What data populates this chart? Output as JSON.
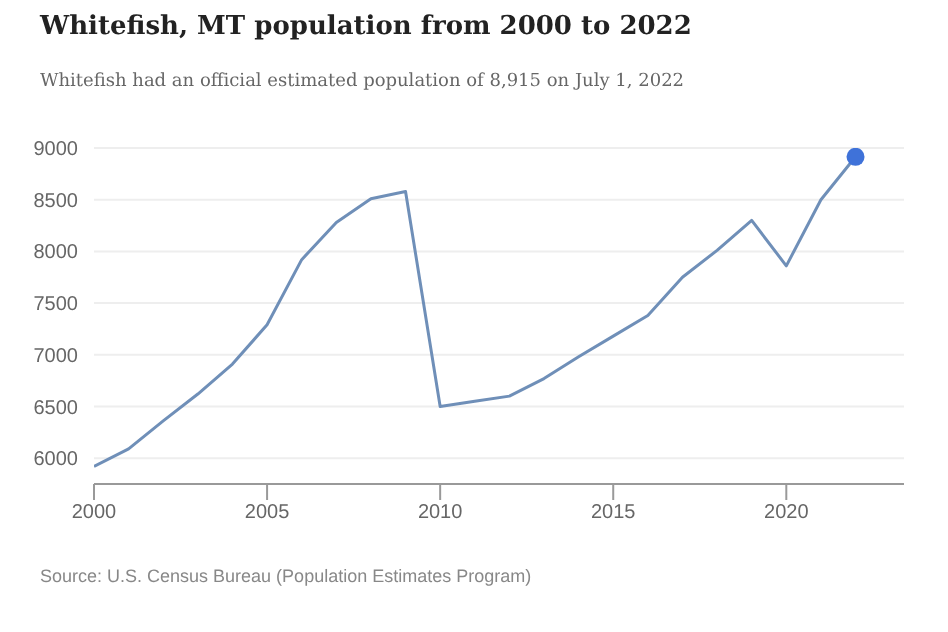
{
  "chart_data": {
    "type": "line",
    "title": "Whitefish, MT population from 2000 to 2022",
    "subtitle": "Whitefish had an official estimated population of 8,915 on July 1, 2022",
    "annotations": [
      "Source: U.S. Census Bureau (Population Estimates Program)"
    ],
    "x": [
      2000,
      2001,
      2002,
      2003,
      2004,
      2005,
      2006,
      2007,
      2008,
      2009,
      2010,
      2011,
      2012,
      2013,
      2014,
      2015,
      2016,
      2017,
      2018,
      2019,
      2020,
      2021,
      2022
    ],
    "series": [
      {
        "color": "#6f8fb8",
        "values": [
          5920,
          6090,
          6360,
          6620,
          6910,
          7290,
          7920,
          8280,
          8510,
          8580,
          6500,
          6550,
          6600,
          6770,
          6980,
          7180,
          7380,
          7750,
          8010,
          8300,
          7860,
          8500,
          8915
        ]
      },
      {
        "type": "scatter",
        "marker": "circle",
        "color": "#3f72d9",
        "x": [
          2022
        ],
        "values": [
          8915
        ]
      }
    ],
    "xlim": [
      2000,
      2023.4
    ],
    "xticks": [
      2000,
      2005,
      2010,
      2015,
      2020
    ],
    "ylim": [
      5750,
      9000
    ],
    "yticks": [
      6000,
      6500,
      7000,
      7500,
      8000,
      8500,
      9000
    ],
    "grid": "y",
    "line_style": "solid"
  }
}
